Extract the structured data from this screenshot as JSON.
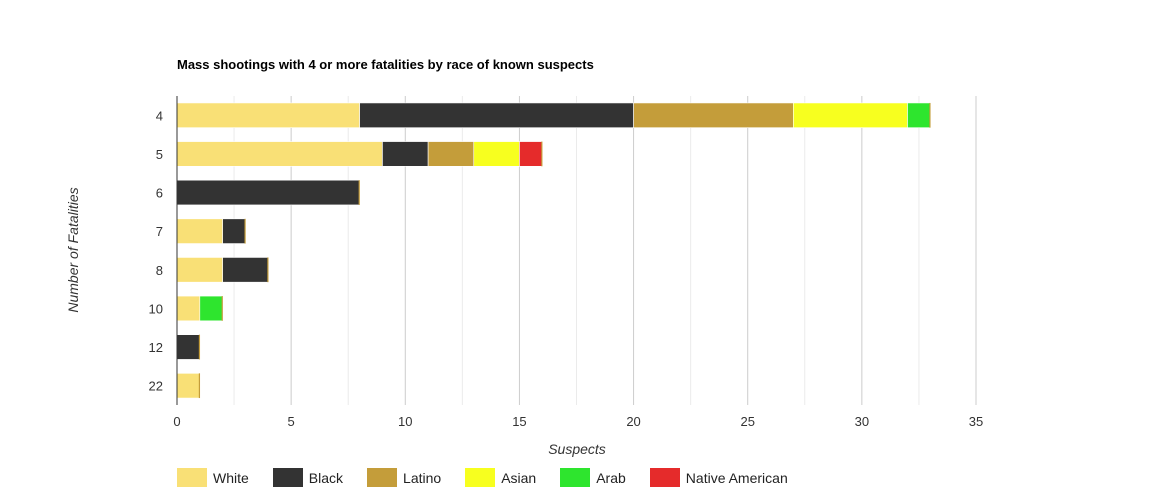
{
  "chart_data": {
    "type": "bar",
    "orientation": "horizontal",
    "stacked": true,
    "title": "Mass shootings with 4 or more fatalities by race of known suspects",
    "xlabel": "Suspects",
    "ylabel": "Number of Fatalities",
    "xlim": [
      0,
      35
    ],
    "xticks": [
      0,
      5,
      10,
      15,
      20,
      25,
      30,
      35
    ],
    "grid": true,
    "legend_position": "bottom-left",
    "categories": [
      "4",
      "5",
      "6",
      "7",
      "8",
      "10",
      "12",
      "22"
    ],
    "series": [
      {
        "name": "White",
        "color": "#f9e076",
        "values": [
          8,
          9,
          0,
          2,
          2,
          1,
          0,
          1
        ]
      },
      {
        "name": "Black",
        "color": "#333333",
        "values": [
          12,
          2,
          8,
          1,
          2,
          0,
          1,
          0
        ]
      },
      {
        "name": "Latino",
        "color": "#c49d3a",
        "values": [
          7,
          2,
          0,
          0,
          0,
          0,
          0,
          0
        ]
      },
      {
        "name": "Asian",
        "color": "#f7ff1f",
        "values": [
          5,
          2,
          0,
          0,
          0,
          0,
          0,
          0
        ]
      },
      {
        "name": "Arab",
        "color": "#2ee52e",
        "values": [
          1,
          0,
          0,
          0,
          0,
          1,
          0,
          0
        ]
      },
      {
        "name": "Native American",
        "color": "#e52b2b",
        "values": [
          0,
          1,
          0,
          0,
          0,
          0,
          0,
          0
        ]
      }
    ]
  }
}
